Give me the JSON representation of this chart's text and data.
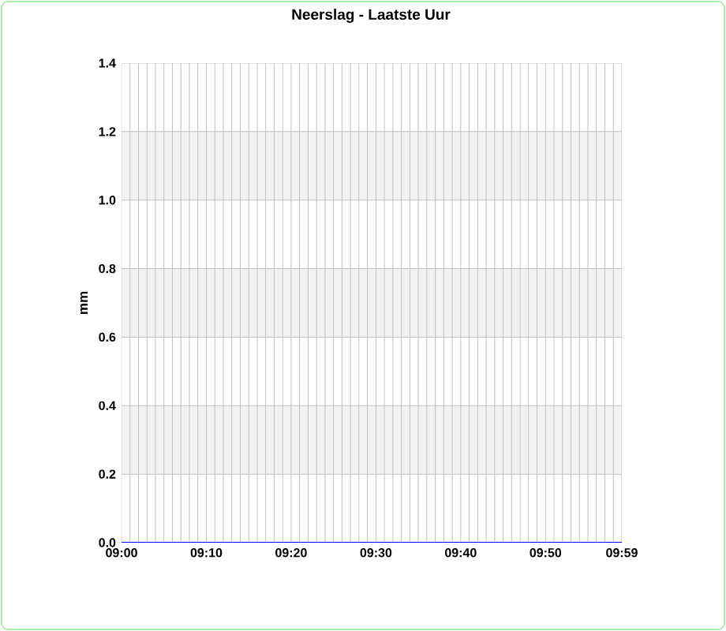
{
  "chart_data": {
    "type": "line",
    "title": "Neerslag - Laatste Uur",
    "ylabel": "mm",
    "categories": [
      "09:00",
      null,
      null,
      null,
      null,
      null,
      null,
      null,
      null,
      null,
      "09:10",
      null,
      null,
      null,
      null,
      null,
      null,
      null,
      null,
      null,
      "09:20",
      null,
      null,
      null,
      null,
      null,
      null,
      null,
      null,
      null,
      "09:30",
      null,
      null,
      null,
      null,
      null,
      null,
      null,
      null,
      null,
      "09:40",
      null,
      null,
      null,
      null,
      null,
      null,
      null,
      null,
      null,
      "09:50",
      null,
      null,
      null,
      null,
      null,
      null,
      null,
      null,
      "09:59"
    ],
    "series": [
      {
        "color": "#0000ff",
        "values": [
          0,
          0,
          0,
          0,
          0,
          0,
          0,
          0,
          0,
          0,
          0,
          0,
          0,
          0,
          0,
          0,
          0,
          0,
          0,
          0,
          0,
          0,
          0,
          0,
          0,
          0,
          0,
          0,
          0,
          0,
          0,
          0,
          0,
          0,
          0,
          0,
          0,
          0,
          0,
          0,
          0,
          0,
          0,
          0,
          0,
          0,
          0,
          0,
          0,
          0,
          0,
          0,
          0,
          0,
          0,
          0,
          0,
          0,
          0,
          0
        ]
      }
    ],
    "ylim": [
      0,
      1.4
    ],
    "yticks": [
      {
        "value": 0,
        "label": "0.0"
      },
      0.2,
      0.4,
      0.6,
      0.8,
      {
        "value": 1,
        "label": "1.0"
      },
      1.2,
      1.4
    ],
    "bands": [
      {
        "axis": "y",
        "from": 0.2,
        "to": 0.4,
        "color": "#f2f2f2"
      },
      {
        "axis": "y",
        "from": 0.6,
        "to": 0.8,
        "color": "#f2f2f2"
      },
      {
        "axis": "y",
        "from": 1.0,
        "to": 1.2,
        "color": "#f2f2f2"
      }
    ],
    "grid": true,
    "marker": "none",
    "line_style": "solid"
  }
}
